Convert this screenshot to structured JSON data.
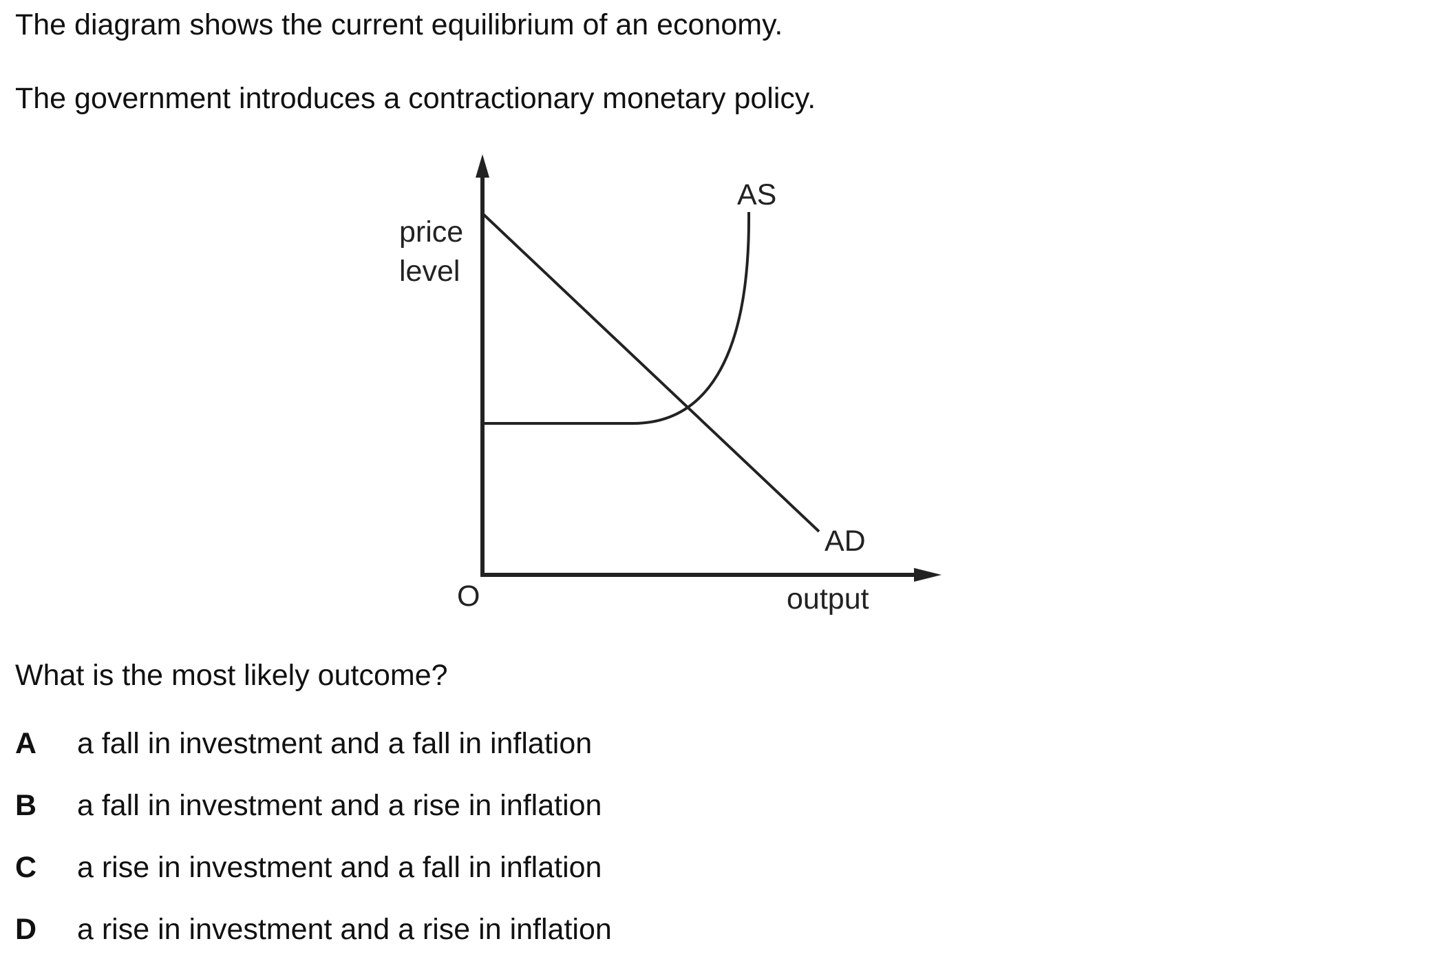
{
  "intro": {
    "line1": "The diagram shows the current equilibrium of an economy.",
    "line2": "The government introduces a contractionary monetary policy."
  },
  "diagram": {
    "y_axis_label_line1": "price",
    "y_axis_label_line2": "level",
    "x_axis_label": "output",
    "origin_label": "O",
    "curve_as_label": "AS",
    "curve_ad_label": "AD"
  },
  "question": "What is the most likely outcome?",
  "options": [
    {
      "letter": "A",
      "text": "a fall in investment and a fall in inflation"
    },
    {
      "letter": "B",
      "text": "a fall in investment and a rise in inflation"
    },
    {
      "letter": "C",
      "text": "a rise in investment and a fall in inflation"
    },
    {
      "letter": "D",
      "text": "a rise in investment and a rise in inflation"
    }
  ]
}
